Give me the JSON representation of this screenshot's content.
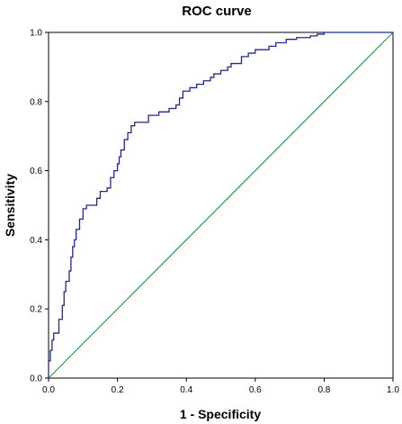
{
  "chart_data": {
    "type": "line",
    "title": "ROC curve",
    "xlabel": "1 - Specificity",
    "ylabel": "Sensitivity",
    "xlim": [
      0,
      1
    ],
    "ylim": [
      0,
      1
    ],
    "xticks": [
      "0.0",
      "0.2",
      "0.4",
      "0.6",
      "0.8",
      "1.0"
    ],
    "yticks": [
      "0.0",
      "0.2",
      "0.4",
      "0.6",
      "0.8",
      "1.0"
    ],
    "grid": false,
    "legend": "none",
    "series": [
      {
        "color": "#1f2a8c",
        "kind": "roc",
        "points": [
          [
            0.0,
            0.0
          ],
          [
            0.0,
            0.05
          ],
          [
            0.005,
            0.05
          ],
          [
            0.005,
            0.08
          ],
          [
            0.01,
            0.08
          ],
          [
            0.01,
            0.11
          ],
          [
            0.015,
            0.11
          ],
          [
            0.015,
            0.13
          ],
          [
            0.03,
            0.13
          ],
          [
            0.03,
            0.17
          ],
          [
            0.04,
            0.17
          ],
          [
            0.04,
            0.21
          ],
          [
            0.045,
            0.21
          ],
          [
            0.045,
            0.25
          ],
          [
            0.05,
            0.25
          ],
          [
            0.05,
            0.28
          ],
          [
            0.06,
            0.28
          ],
          [
            0.06,
            0.31
          ],
          [
            0.065,
            0.31
          ],
          [
            0.065,
            0.35
          ],
          [
            0.07,
            0.35
          ],
          [
            0.07,
            0.38
          ],
          [
            0.075,
            0.38
          ],
          [
            0.075,
            0.4
          ],
          [
            0.08,
            0.4
          ],
          [
            0.08,
            0.43
          ],
          [
            0.09,
            0.43
          ],
          [
            0.09,
            0.46
          ],
          [
            0.1,
            0.46
          ],
          [
            0.1,
            0.49
          ],
          [
            0.11,
            0.49
          ],
          [
            0.11,
            0.5
          ],
          [
            0.14,
            0.5
          ],
          [
            0.14,
            0.52
          ],
          [
            0.15,
            0.52
          ],
          [
            0.15,
            0.54
          ],
          [
            0.17,
            0.54
          ],
          [
            0.17,
            0.55
          ],
          [
            0.18,
            0.55
          ],
          [
            0.18,
            0.58
          ],
          [
            0.19,
            0.58
          ],
          [
            0.19,
            0.6
          ],
          [
            0.2,
            0.6
          ],
          [
            0.2,
            0.62
          ],
          [
            0.205,
            0.62
          ],
          [
            0.205,
            0.64
          ],
          [
            0.21,
            0.64
          ],
          [
            0.21,
            0.66
          ],
          [
            0.22,
            0.66
          ],
          [
            0.22,
            0.69
          ],
          [
            0.23,
            0.69
          ],
          [
            0.23,
            0.71
          ],
          [
            0.24,
            0.71
          ],
          [
            0.24,
            0.73
          ],
          [
            0.25,
            0.73
          ],
          [
            0.25,
            0.74
          ],
          [
            0.29,
            0.74
          ],
          [
            0.29,
            0.76
          ],
          [
            0.32,
            0.76
          ],
          [
            0.32,
            0.77
          ],
          [
            0.35,
            0.77
          ],
          [
            0.35,
            0.78
          ],
          [
            0.37,
            0.78
          ],
          [
            0.37,
            0.79
          ],
          [
            0.38,
            0.79
          ],
          [
            0.38,
            0.81
          ],
          [
            0.39,
            0.81
          ],
          [
            0.39,
            0.83
          ],
          [
            0.41,
            0.83
          ],
          [
            0.41,
            0.84
          ],
          [
            0.43,
            0.84
          ],
          [
            0.43,
            0.85
          ],
          [
            0.45,
            0.85
          ],
          [
            0.45,
            0.86
          ],
          [
            0.47,
            0.86
          ],
          [
            0.47,
            0.87
          ],
          [
            0.48,
            0.87
          ],
          [
            0.48,
            0.88
          ],
          [
            0.5,
            0.88
          ],
          [
            0.5,
            0.89
          ],
          [
            0.52,
            0.89
          ],
          [
            0.52,
            0.9
          ],
          [
            0.53,
            0.9
          ],
          [
            0.53,
            0.91
          ],
          [
            0.56,
            0.91
          ],
          [
            0.56,
            0.93
          ],
          [
            0.58,
            0.93
          ],
          [
            0.58,
            0.94
          ],
          [
            0.6,
            0.94
          ],
          [
            0.6,
            0.95
          ],
          [
            0.64,
            0.95
          ],
          [
            0.64,
            0.96
          ],
          [
            0.66,
            0.96
          ],
          [
            0.66,
            0.97
          ],
          [
            0.69,
            0.97
          ],
          [
            0.69,
            0.98
          ],
          [
            0.72,
            0.98
          ],
          [
            0.72,
            0.985
          ],
          [
            0.76,
            0.985
          ],
          [
            0.76,
            0.99
          ],
          [
            0.78,
            0.99
          ],
          [
            0.78,
            0.995
          ],
          [
            0.8,
            0.995
          ],
          [
            0.8,
            1.0
          ],
          [
            1.0,
            1.0
          ]
        ]
      },
      {
        "color": "#2e9b3f",
        "kind": "reference",
        "points": [
          [
            0,
            0
          ],
          [
            1,
            1
          ]
        ]
      }
    ]
  }
}
